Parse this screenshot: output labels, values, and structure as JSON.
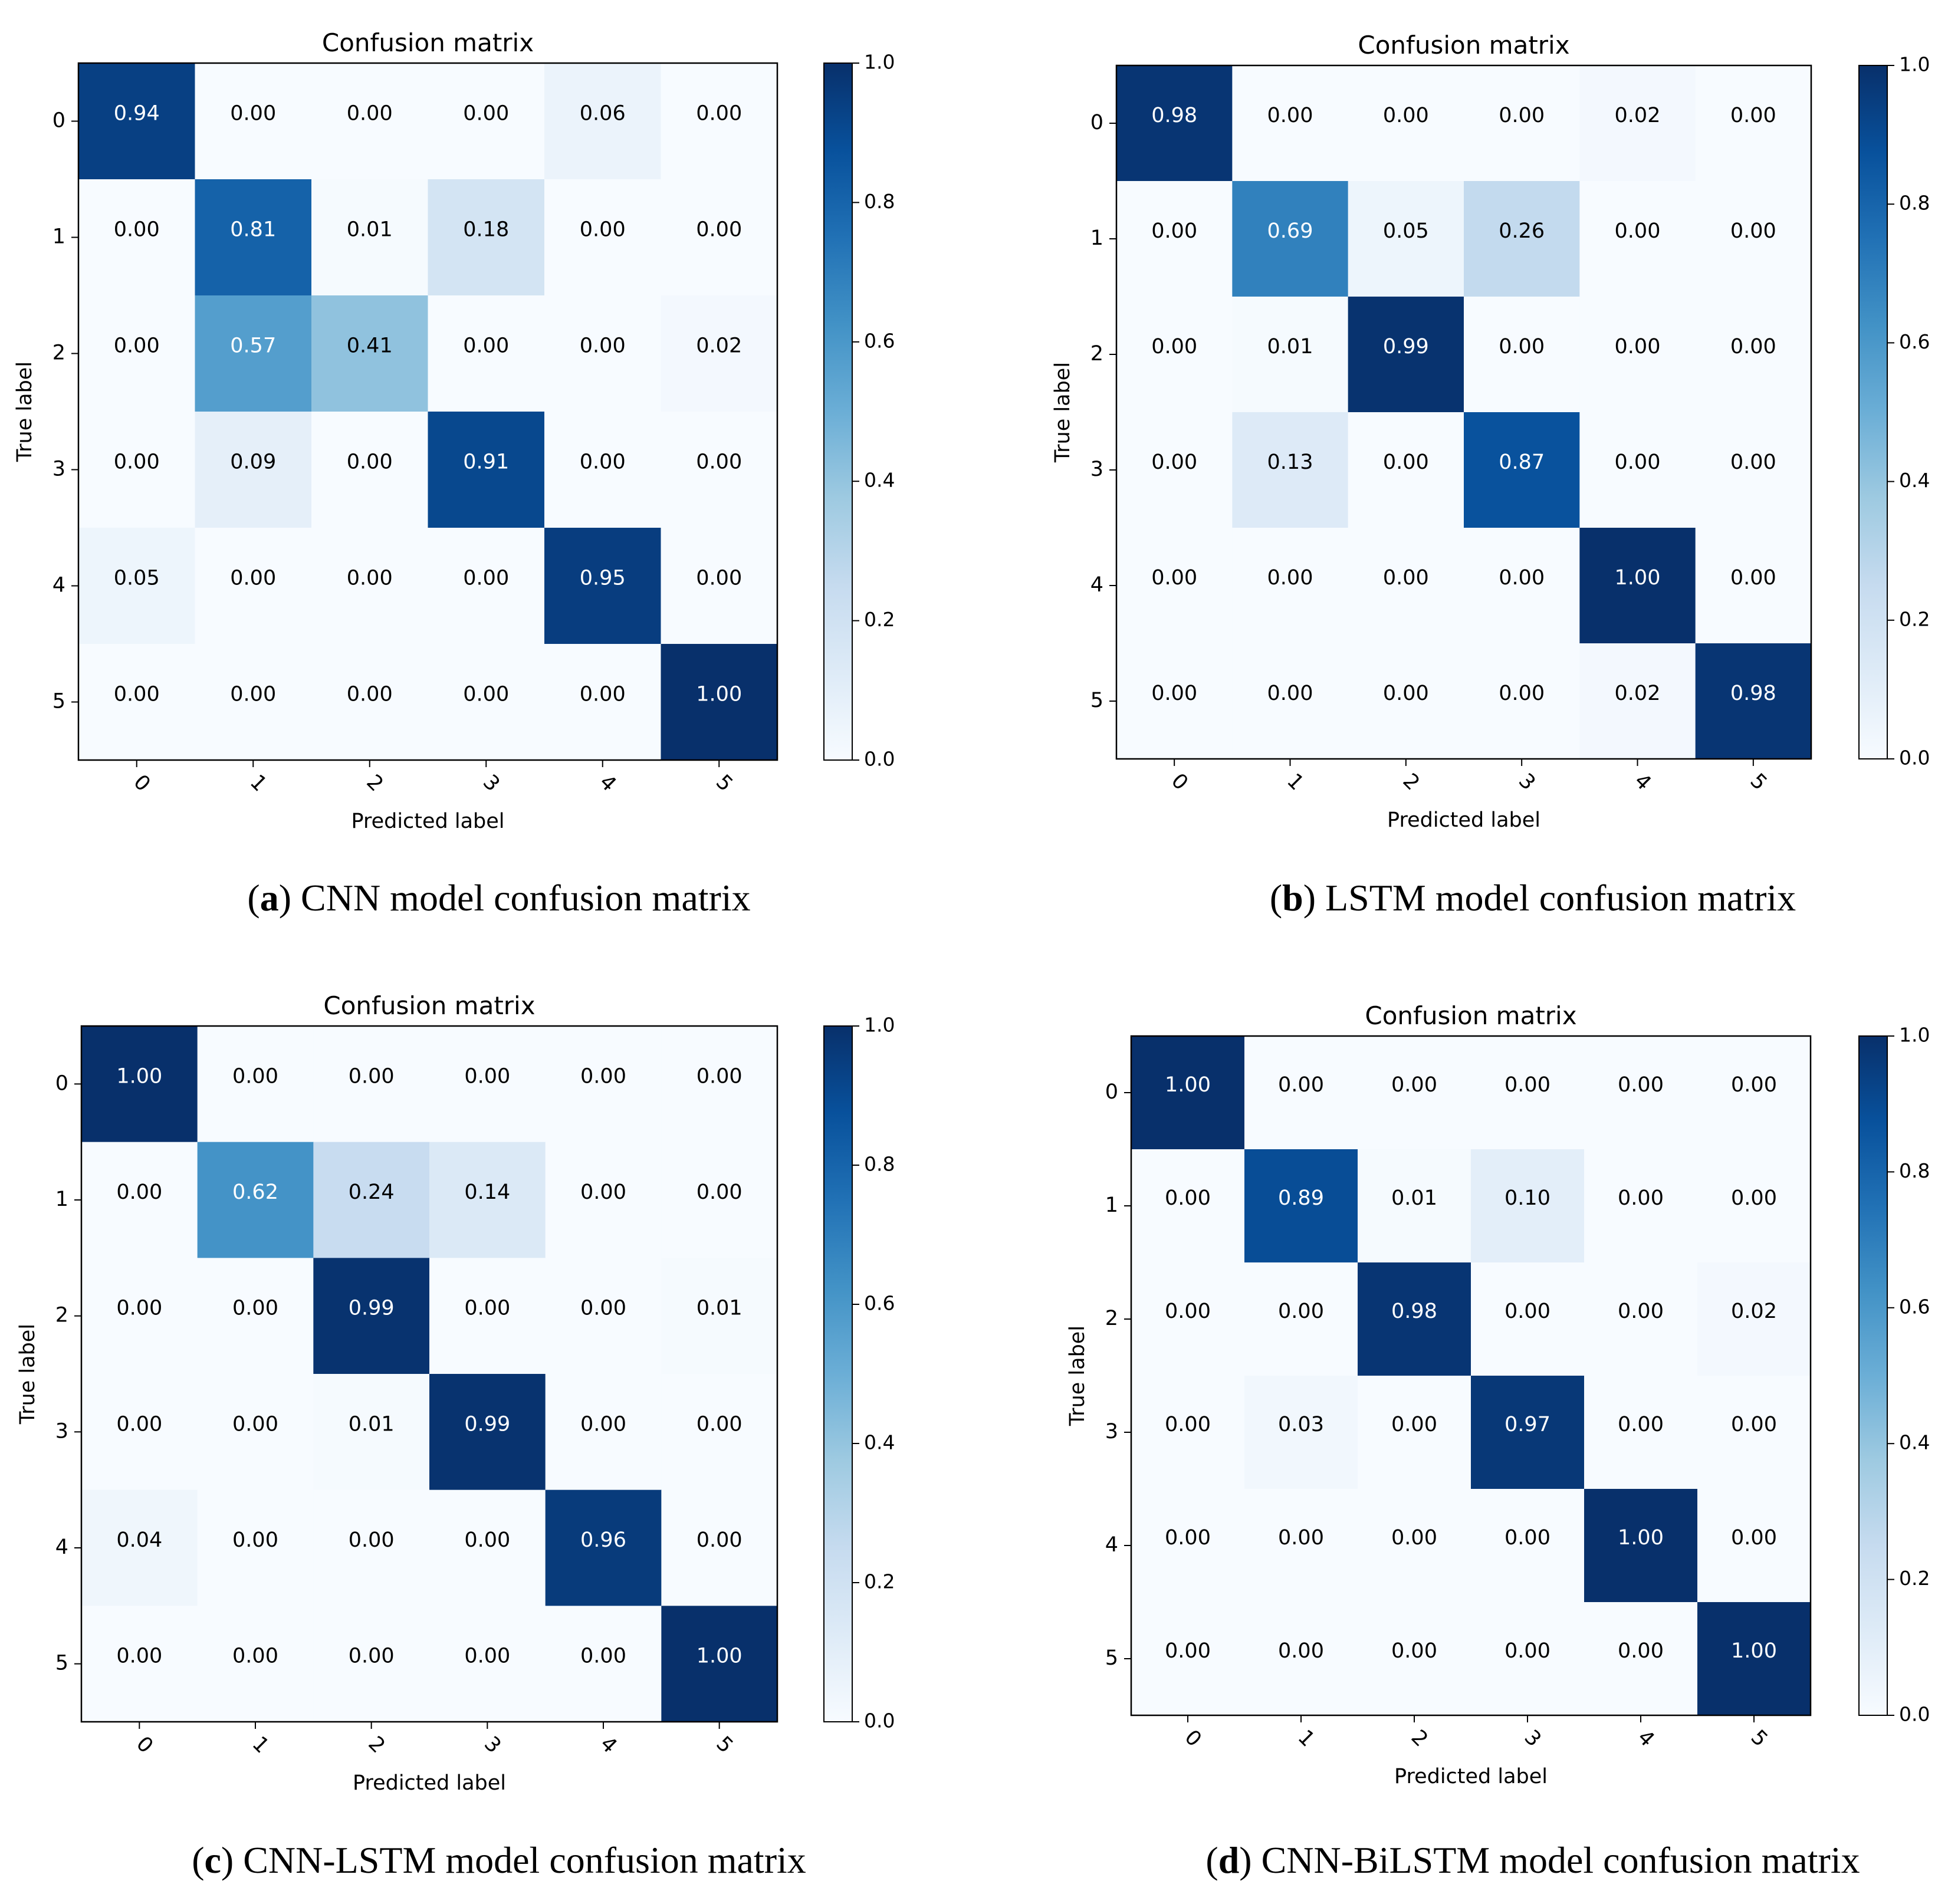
{
  "figure": {
    "panels": [
      {
        "letter": "a",
        "caption": "CNN model confusion matrix"
      },
      {
        "letter": "b",
        "caption": "LSTM model confusion matrix"
      },
      {
        "letter": "c",
        "caption": "CNN-LSTM model confusion matrix"
      },
      {
        "letter": "d",
        "caption": "CNN-BiLSTM model confusion matrix"
      }
    ]
  },
  "colormap": {
    "name": "Blues",
    "low_color": "#f7fbff",
    "high_color": "#08306b"
  },
  "chart_data": [
    {
      "type": "heatmap",
      "title": "Confusion matrix",
      "xlabel": "Predicted label",
      "ylabel": "True label",
      "x_categories": [
        "0",
        "1",
        "2",
        "3",
        "4",
        "5"
      ],
      "y_categories": [
        "0",
        "1",
        "2",
        "3",
        "4",
        "5"
      ],
      "colorbar_ticks": [
        "0.0",
        "0.2",
        "0.4",
        "0.6",
        "0.8",
        "1.0"
      ],
      "value_range": [
        0,
        1
      ],
      "values": [
        [
          0.94,
          0.0,
          0.0,
          0.0,
          0.06,
          0.0
        ],
        [
          0.0,
          0.81,
          0.01,
          0.18,
          0.0,
          0.0
        ],
        [
          0.0,
          0.57,
          0.41,
          0.0,
          0.0,
          0.02
        ],
        [
          0.0,
          0.09,
          0.0,
          0.91,
          0.0,
          0.0
        ],
        [
          0.05,
          0.0,
          0.0,
          0.0,
          0.95,
          0.0
        ],
        [
          0.0,
          0.0,
          0.0,
          0.0,
          0.0,
          1.0
        ]
      ]
    },
    {
      "type": "heatmap",
      "title": "Confusion matrix",
      "xlabel": "Predicted label",
      "ylabel": "True label",
      "x_categories": [
        "0",
        "1",
        "2",
        "3",
        "4",
        "5"
      ],
      "y_categories": [
        "0",
        "1",
        "2",
        "3",
        "4",
        "5"
      ],
      "colorbar_ticks": [
        "0.0",
        "0.2",
        "0.4",
        "0.6",
        "0.8",
        "1.0"
      ],
      "value_range": [
        0,
        1
      ],
      "values": [
        [
          0.98,
          0.0,
          0.0,
          0.0,
          0.02,
          0.0
        ],
        [
          0.0,
          0.69,
          0.05,
          0.26,
          0.0,
          0.0
        ],
        [
          0.0,
          0.01,
          0.99,
          0.0,
          0.0,
          0.0
        ],
        [
          0.0,
          0.13,
          0.0,
          0.87,
          0.0,
          0.0
        ],
        [
          0.0,
          0.0,
          0.0,
          0.0,
          1.0,
          0.0
        ],
        [
          0.0,
          0.0,
          0.0,
          0.0,
          0.02,
          0.98
        ]
      ]
    },
    {
      "type": "heatmap",
      "title": "Confusion matrix",
      "xlabel": "Predicted label",
      "ylabel": "True label",
      "x_categories": [
        "0",
        "1",
        "2",
        "3",
        "4",
        "5"
      ],
      "y_categories": [
        "0",
        "1",
        "2",
        "3",
        "4",
        "5"
      ],
      "colorbar_ticks": [
        "0.0",
        "0.2",
        "0.4",
        "0.6",
        "0.8",
        "1.0"
      ],
      "value_range": [
        0,
        1
      ],
      "values": [
        [
          1.0,
          0.0,
          0.0,
          0.0,
          0.0,
          0.0
        ],
        [
          0.0,
          0.62,
          0.24,
          0.14,
          0.0,
          0.0
        ],
        [
          0.0,
          0.0,
          0.99,
          0.0,
          0.0,
          0.01
        ],
        [
          0.0,
          0.0,
          0.01,
          0.99,
          0.0,
          0.0
        ],
        [
          0.04,
          0.0,
          0.0,
          0.0,
          0.96,
          0.0
        ],
        [
          0.0,
          0.0,
          0.0,
          0.0,
          0.0,
          1.0
        ]
      ]
    },
    {
      "type": "heatmap",
      "title": "Confusion matrix",
      "xlabel": "Predicted label",
      "ylabel": "True label",
      "x_categories": [
        "0",
        "1",
        "2",
        "3",
        "4",
        "5"
      ],
      "y_categories": [
        "0",
        "1",
        "2",
        "3",
        "4",
        "5"
      ],
      "colorbar_ticks": [
        "0.0",
        "0.2",
        "0.4",
        "0.6",
        "0.8",
        "1.0"
      ],
      "value_range": [
        0,
        1
      ],
      "values": [
        [
          1.0,
          0.0,
          0.0,
          0.0,
          0.0,
          0.0
        ],
        [
          0.0,
          0.89,
          0.01,
          0.1,
          0.0,
          0.0
        ],
        [
          0.0,
          0.0,
          0.98,
          0.0,
          0.0,
          0.02
        ],
        [
          0.0,
          0.03,
          0.0,
          0.97,
          0.0,
          0.0
        ],
        [
          0.0,
          0.0,
          0.0,
          0.0,
          1.0,
          0.0
        ],
        [
          0.0,
          0.0,
          0.0,
          0.0,
          0.0,
          1.0
        ]
      ]
    }
  ]
}
